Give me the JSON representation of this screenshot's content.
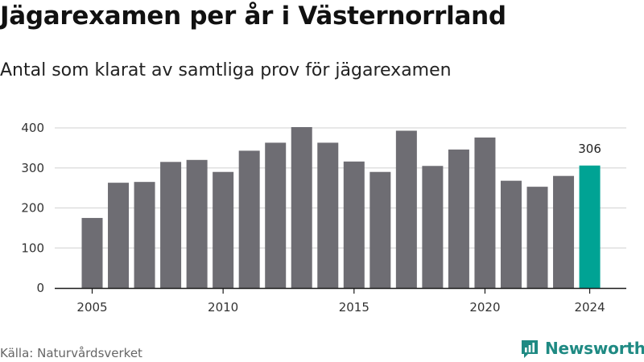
{
  "header": {
    "title": "Jägarexamen per år i Västernorrland",
    "subtitle": "Antal som klarat av samtliga prov för jägarexamen"
  },
  "footer": {
    "source": "Källa: Naturvårdsverket",
    "brand": "Newsworthy",
    "logo_icon": "bar-chart-logo-icon"
  },
  "colors": {
    "bar": "#6e6d73",
    "highlight": "#00a394",
    "grid": "#d9d9d9",
    "axis": "#1a1a1a",
    "brand": "#1f8a83"
  },
  "chart_data": {
    "type": "bar",
    "title": "Jägarexamen per år i Västernorrland",
    "subtitle": "Antal som klarat av samtliga prov för jägarexamen",
    "xlabel": "",
    "ylabel": "",
    "categories": [
      2005,
      2006,
      2007,
      2008,
      2009,
      2010,
      2011,
      2012,
      2013,
      2014,
      2015,
      2016,
      2017,
      2018,
      2019,
      2020,
      2021,
      2022,
      2023,
      2024
    ],
    "values": [
      175,
      263,
      265,
      315,
      320,
      290,
      343,
      363,
      402,
      363,
      316,
      290,
      393,
      305,
      346,
      376,
      268,
      253,
      280,
      306
    ],
    "x_ticks": [
      2005,
      2010,
      2015,
      2020,
      2024
    ],
    "y_ticks": [
      0,
      100,
      200,
      300,
      400
    ],
    "ylim": [
      0,
      400
    ],
    "grid": true,
    "legend": "none",
    "highlight_category": 2024,
    "data_labels": [
      {
        "category": 2024,
        "label": "306"
      }
    ]
  }
}
